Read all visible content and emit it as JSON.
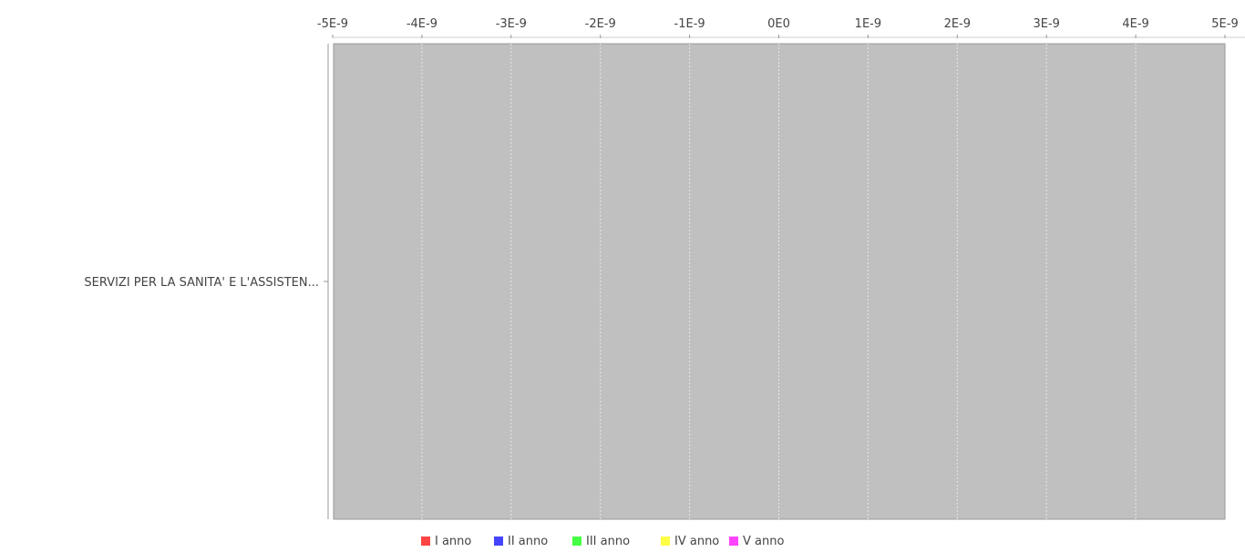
{
  "chart_data": {
    "type": "bar",
    "orientation": "horizontal",
    "categories": [
      "SERVIZI PER LA SANITA' E L'ASSISTEN..."
    ],
    "series": [
      {
        "name": "I anno",
        "values": [
          0
        ],
        "color": "#ff4444"
      },
      {
        "name": "II anno",
        "values": [
          0
        ],
        "color": "#4444ff"
      },
      {
        "name": "III anno",
        "values": [
          0
        ],
        "color": "#44ff44"
      },
      {
        "name": "IV anno",
        "values": [
          0
        ],
        "color": "#ffff44"
      },
      {
        "name": "V anno",
        "values": [
          0
        ],
        "color": "#ff44ff"
      }
    ],
    "value_axis": {
      "position": "top",
      "range": [
        -5e-09,
        5e-09
      ],
      "ticks": [
        -5e-09,
        -4e-09,
        -3e-09,
        -2e-09,
        -1e-09,
        0,
        1e-09,
        2e-09,
        3e-09,
        4e-09,
        5e-09
      ],
      "tick_labels": [
        "-5E-9",
        "-4E-9",
        "-3E-9",
        "-2E-9",
        "-1E-9",
        "0E0",
        "1E-9",
        "2E-9",
        "3E-9",
        "4E-9",
        "5E-9"
      ]
    },
    "grid": true,
    "plot_background": "#c0c0c0",
    "legend_position": "bottom",
    "title": "",
    "xlabel": "",
    "ylabel": ""
  }
}
